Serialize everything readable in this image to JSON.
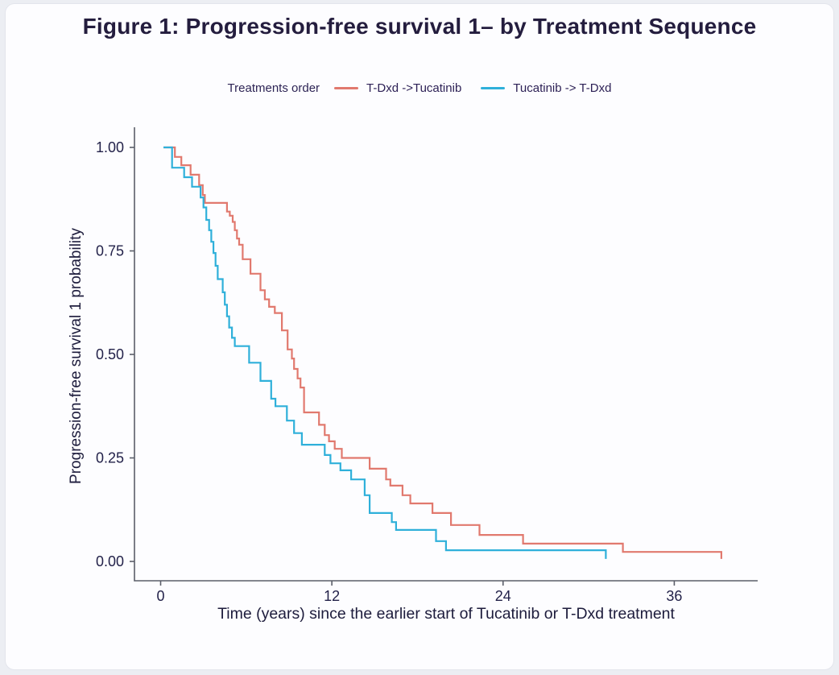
{
  "figure": {
    "title": "Figure 1: Progression-free survival 1– by Treatment Sequence"
  },
  "chart_data": {
    "type": "line",
    "subtype": "kaplan-meier-step",
    "title": "Figure 1: Progression-free survival 1– by Treatment Sequence",
    "xlabel": "Time (years) since the earlier start of Tucatinib or T-Dxd treatment",
    "ylabel": "Progression-free survival 1 probability",
    "xlim": [
      0,
      42
    ],
    "ylim": [
      0,
      1
    ],
    "x_ticks": [
      0,
      12,
      24,
      36
    ],
    "x_tick_labels": [
      "0",
      "12",
      "24",
      "36"
    ],
    "y_ticks": [
      1.0,
      0.75,
      0.5,
      0.25,
      0.0
    ],
    "y_tick_labels": [
      "1.00",
      "0.75",
      "0.50",
      "0.25",
      "0.00"
    ],
    "grid": false,
    "legend_title": "Treatments order",
    "legend_position": "top",
    "series": [
      {
        "name": "T-Dxd ->Tucatinib",
        "color": "#e1796e",
        "step": "after",
        "points": [
          [
            0.2,
            1.0
          ],
          [
            1.0,
            0.977
          ],
          [
            1.45,
            0.957
          ],
          [
            2.1,
            0.934
          ],
          [
            2.7,
            0.909
          ],
          [
            2.95,
            0.885
          ],
          [
            3.1,
            0.866
          ],
          [
            4.65,
            0.845
          ],
          [
            4.85,
            0.835
          ],
          [
            5.05,
            0.82
          ],
          [
            5.2,
            0.8
          ],
          [
            5.35,
            0.78
          ],
          [
            5.5,
            0.765
          ],
          [
            5.75,
            0.73
          ],
          [
            6.3,
            0.695
          ],
          [
            7.0,
            0.655
          ],
          [
            7.3,
            0.633
          ],
          [
            7.6,
            0.615
          ],
          [
            8.0,
            0.6
          ],
          [
            8.5,
            0.558
          ],
          [
            8.9,
            0.512
          ],
          [
            9.2,
            0.49
          ],
          [
            9.35,
            0.465
          ],
          [
            9.6,
            0.442
          ],
          [
            9.8,
            0.42
          ],
          [
            10.05,
            0.36
          ],
          [
            11.1,
            0.33
          ],
          [
            11.5,
            0.305
          ],
          [
            11.8,
            0.29
          ],
          [
            12.2,
            0.272
          ],
          [
            12.7,
            0.25
          ],
          [
            14.65,
            0.224
          ],
          [
            15.8,
            0.198
          ],
          [
            16.1,
            0.183
          ],
          [
            16.95,
            0.16
          ],
          [
            17.5,
            0.14
          ],
          [
            19.05,
            0.117
          ],
          [
            20.35,
            0.088
          ],
          [
            22.35,
            0.064
          ],
          [
            25.4,
            0.043
          ],
          [
            32.4,
            0.023
          ],
          [
            39.3,
            0.006
          ]
        ]
      },
      {
        "name": "Tucatinib -> T-Dxd",
        "color": "#2fb0da",
        "step": "after",
        "points": [
          [
            0.2,
            1.0
          ],
          [
            0.8,
            0.951
          ],
          [
            1.65,
            0.928
          ],
          [
            2.2,
            0.905
          ],
          [
            2.8,
            0.879
          ],
          [
            3.0,
            0.855
          ],
          [
            3.2,
            0.825
          ],
          [
            3.4,
            0.8
          ],
          [
            3.55,
            0.772
          ],
          [
            3.7,
            0.745
          ],
          [
            3.85,
            0.714
          ],
          [
            4.0,
            0.682
          ],
          [
            4.35,
            0.65
          ],
          [
            4.5,
            0.62
          ],
          [
            4.65,
            0.592
          ],
          [
            4.8,
            0.565
          ],
          [
            5.0,
            0.54
          ],
          [
            5.2,
            0.52
          ],
          [
            6.2,
            0.48
          ],
          [
            7.0,
            0.436
          ],
          [
            7.75,
            0.393
          ],
          [
            8.05,
            0.375
          ],
          [
            8.85,
            0.34
          ],
          [
            9.35,
            0.31
          ],
          [
            9.9,
            0.282
          ],
          [
            11.5,
            0.257
          ],
          [
            11.9,
            0.237
          ],
          [
            12.6,
            0.22
          ],
          [
            13.35,
            0.198
          ],
          [
            14.3,
            0.16
          ],
          [
            14.65,
            0.117
          ],
          [
            16.2,
            0.095
          ],
          [
            16.5,
            0.076
          ],
          [
            19.3,
            0.049
          ],
          [
            20.0,
            0.027
          ],
          [
            31.2,
            0.006
          ]
        ]
      }
    ]
  },
  "colors": {
    "curve_tdxd_first": "#e1796e",
    "curve_tucatinib_first": "#2fb0da",
    "axis": "#5b5e69",
    "tick_text": "#23224a",
    "title_text": "#241d3e",
    "background": "#fdfdff"
  }
}
